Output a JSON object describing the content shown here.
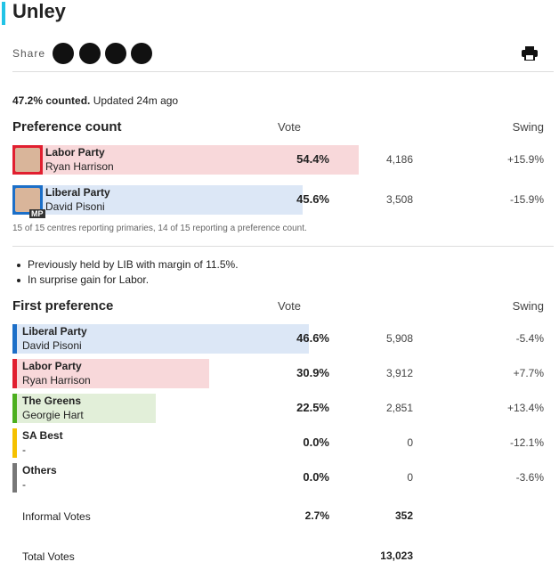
{
  "header": {
    "title": "Unley",
    "share_label": "Share"
  },
  "status": {
    "counted": "47.2% counted.",
    "updated": "Updated 24m ago"
  },
  "preference": {
    "heading": "Preference count",
    "vote_heading": "Vote",
    "swing_heading": "Swing",
    "rows": [
      {
        "party": "Labor Party",
        "candidate": "Ryan Harrison",
        "share": 54.4,
        "share_label": "54.4%",
        "votes": "4,186",
        "swing": "+15.9%",
        "color": "#e11f30",
        "bg": "#f8d8da"
      },
      {
        "party": "Liberal Party",
        "candidate": "David Pisoni",
        "share": 45.6,
        "share_label": "45.6%",
        "votes": "3,508",
        "swing": "-15.9%",
        "color": "#1c6fc8",
        "bg": "#dce7f6",
        "badge": "MP"
      }
    ],
    "note": "15 of 15 centres reporting primaries, 14 of 15 reporting a preference count."
  },
  "notes": [
    "Previously held by LIB with margin of 11.5%.",
    "In surprise gain for Labor."
  ],
  "first": {
    "heading": "First preference",
    "vote_heading": "Vote",
    "swing_heading": "Swing",
    "rows": [
      {
        "party": "Liberal Party",
        "candidate": "David Pisoni",
        "share": 46.6,
        "share_label": "46.6%",
        "votes": "5,908",
        "swing": "-5.4%",
        "color": "#1c6fc8",
        "bg": "#dce7f6"
      },
      {
        "party": "Labor Party",
        "candidate": "Ryan Harrison",
        "share": 30.9,
        "share_label": "30.9%",
        "votes": "3,912",
        "swing": "+7.7%",
        "color": "#e11f30",
        "bg": "#f8d8da"
      },
      {
        "party": "The Greens",
        "candidate": "Georgie Hart",
        "share": 22.5,
        "share_label": "22.5%",
        "votes": "2,851",
        "swing": "+13.4%",
        "color": "#4caf1e",
        "bg": "#e2efd9"
      },
      {
        "party": "SA Best",
        "candidate": "-",
        "share": 0.0,
        "share_label": "0.0%",
        "votes": "0",
        "swing": "-12.1%",
        "color": "#f5c100",
        "bg": "#fdf3cc"
      },
      {
        "party": "Others",
        "candidate": "-",
        "share": 0.0,
        "share_label": "0.0%",
        "votes": "0",
        "swing": "-3.6%",
        "color": "#777777",
        "bg": "#e6e6e6"
      }
    ]
  },
  "informal": {
    "label": "Informal Votes",
    "share_label": "2.7%",
    "votes": "352"
  },
  "total": {
    "label": "Total Votes",
    "votes": "13,023"
  }
}
